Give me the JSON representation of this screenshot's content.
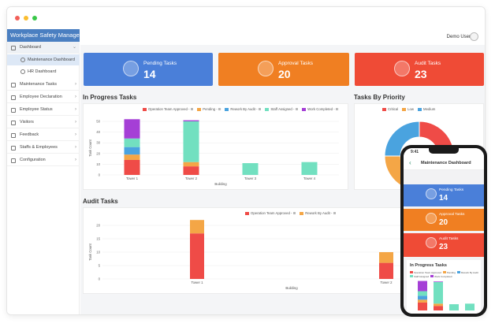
{
  "sidebar": {
    "brand": "Workplace Safety Manage...",
    "items": [
      {
        "label": "Dashboard",
        "chev": "⌄"
      },
      {
        "label": "Maintenance Tasks",
        "chev": "›"
      },
      {
        "label": "Employee Declaration",
        "chev": "›"
      },
      {
        "label": "Employee Status",
        "chev": "›"
      },
      {
        "label": "Visitors",
        "chev": "›"
      },
      {
        "label": "Feedback",
        "chev": "›"
      },
      {
        "label": "Staffs & Employees",
        "chev": "›"
      },
      {
        "label": "Configuration",
        "chev": "›"
      }
    ],
    "subitems": [
      {
        "label": "Maintenance Dashboard"
      },
      {
        "label": "HR Dashboard"
      }
    ]
  },
  "header": {
    "user": "Demo User"
  },
  "cards": [
    {
      "label": "Pending Tasks",
      "value": "14",
      "color": "#4a7fd9",
      "icon": "inbox-icon"
    },
    {
      "label": "Approval Tasks",
      "value": "20",
      "color": "#f07f22",
      "icon": "approval-icon"
    },
    {
      "label": "Audit Tasks",
      "value": "23",
      "color": "#ef4b36",
      "icon": "bulb-icon"
    }
  ],
  "sections": {
    "in_progress": "In Progress Tasks",
    "priority": "Tasks By Priority",
    "audit": "Audit Tasks"
  },
  "chart_data": [
    {
      "type": "bar",
      "title": "In Progress Tasks",
      "xlabel": "Building",
      "ylabel": "Task Count",
      "ylim": [
        0,
        50
      ],
      "yticks": [
        "0",
        "10",
        "20",
        "30",
        "40",
        "50"
      ],
      "categories": [
        "Tower 1",
        "Tower 2",
        "Tower 3",
        "Tower 4"
      ],
      "series": [
        {
          "name": "Operation Team Approved - III",
          "color": "#ef4b47",
          "values": [
            14,
            8,
            0,
            0
          ]
        },
        {
          "name": "Pending - III",
          "color": "#f4a646",
          "values": [
            5,
            4,
            0,
            0
          ]
        },
        {
          "name": "Rework By Audit - III",
          "color": "#4aa3df",
          "values": [
            7,
            0,
            0,
            0
          ]
        },
        {
          "name": "Staff Assigned - III",
          "color": "#72e0c0",
          "values": [
            8,
            38,
            11,
            12
          ]
        },
        {
          "name": "Work Completed - III",
          "color": "#a53fd6",
          "values": [
            18,
            1,
            0,
            0
          ]
        }
      ]
    },
    {
      "type": "pie",
      "title": "Tasks By Priority",
      "series": [
        {
          "name": "Critical",
          "color": "#ef4b47",
          "value": 30
        },
        {
          "name": "Low",
          "color": "#f4a646",
          "value": 45
        },
        {
          "name": "Medium",
          "color": "#4aa3df",
          "value": 25
        }
      ]
    },
    {
      "type": "bar",
      "title": "Audit Tasks",
      "xlabel": "Building",
      "ylabel": "Task Count",
      "ylim": [
        0,
        20
      ],
      "yticks": [
        "0",
        "5",
        "10",
        "15",
        "20"
      ],
      "categories": [
        "Tower 1",
        "Tower 2"
      ],
      "series": [
        {
          "name": "Operation Team Approved - III",
          "color": "#ef4b47",
          "values": [
            17,
            6
          ]
        },
        {
          "name": "Rework By Audit - III",
          "color": "#f4a646",
          "values": [
            5,
            4
          ]
        }
      ]
    }
  ],
  "phone": {
    "time": "9:41",
    "title": "Maintenance Dashboard",
    "back": "‹",
    "cards": [
      {
        "label": "Pending Tasks",
        "value": "14",
        "color": "#4a7fd9"
      },
      {
        "label": "Approval Tasks",
        "value": "20",
        "color": "#f07f22"
      },
      {
        "label": "Audit Tasks",
        "value": "23",
        "color": "#ef4b36"
      }
    ],
    "section": "In Progress Tasks",
    "legend": [
      "Operation Team Approved",
      "Pending",
      "Rework By Audit",
      "Staff Assigned",
      "Work Completed"
    ]
  }
}
